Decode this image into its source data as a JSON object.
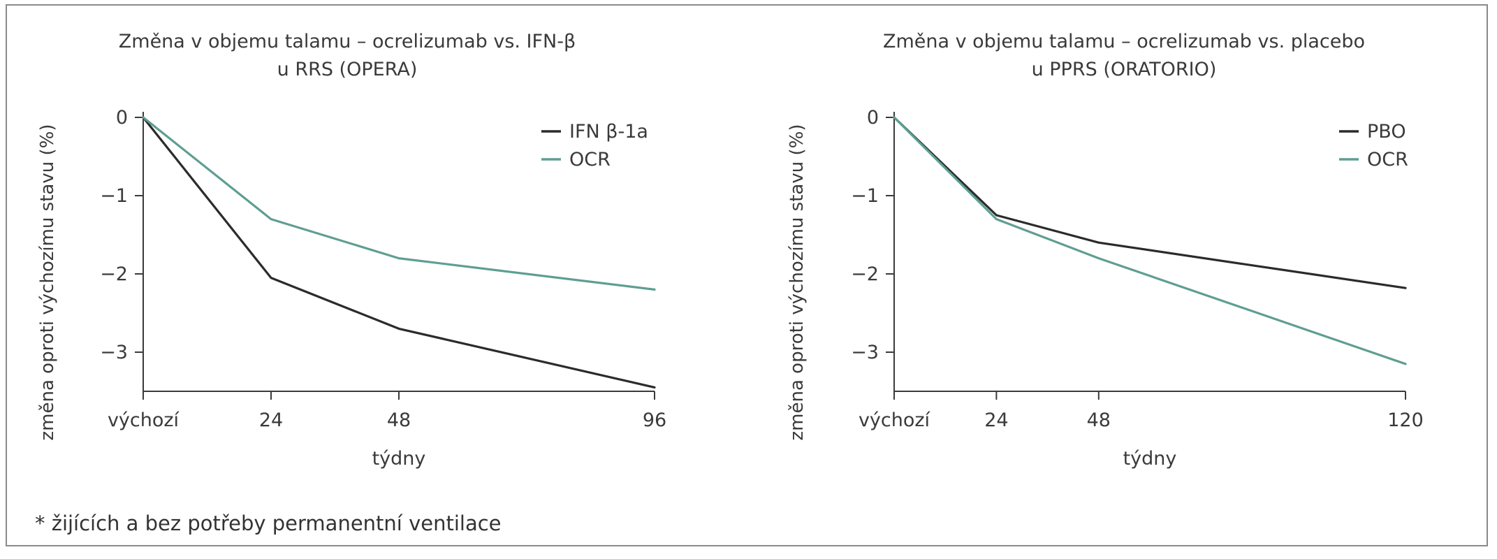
{
  "chart_data": [
    {
      "type": "line",
      "title": [
        "Změna v objemu talamu – ocrelizumab vs. IFN-β",
        "u RRS (OPERA)"
      ],
      "xlabel": "týdny",
      "ylabel": "změna oproti výchozímu stavu (%)",
      "x": [
        0,
        24,
        48,
        96
      ],
      "x_tick_labels": [
        "výchozí",
        "24",
        "48",
        "96"
      ],
      "xlim": [
        0,
        96
      ],
      "ylim": [
        -3.5,
        0
      ],
      "y_ticks": [
        0,
        -1,
        -2,
        -3
      ],
      "y_tick_labels": [
        "0",
        "−1",
        "−2",
        "−3"
      ],
      "grid": false,
      "legend_position": "top-right",
      "series": [
        {
          "name": "IFN β-1a",
          "color": "#2b2b2b",
          "values": [
            0,
            -2.05,
            -2.7,
            -3.45
          ]
        },
        {
          "name": "OCR",
          "color": "#5f9e92",
          "values": [
            0,
            -1.3,
            -1.8,
            -2.2
          ]
        }
      ]
    },
    {
      "type": "line",
      "title": [
        "Změna v objemu talamu – ocrelizumab vs. placebo",
        "u PPRS (ORATORIO)"
      ],
      "xlabel": "týdny",
      "ylabel": "změna oproti výchozímu stavu (%)",
      "x": [
        0,
        24,
        48,
        120
      ],
      "x_tick_labels": [
        "výchozí",
        "24",
        "48",
        "120"
      ],
      "xlim": [
        0,
        120
      ],
      "ylim": [
        -3.5,
        0
      ],
      "y_ticks": [
        0,
        -1,
        -2,
        -3
      ],
      "y_tick_labels": [
        "0",
        "−1",
        "−2",
        "−3"
      ],
      "grid": false,
      "legend_position": "top-right",
      "series": [
        {
          "name": "PBO",
          "color": "#2b2b2b",
          "values": [
            0,
            -1.25,
            -1.6,
            -2.18
          ]
        },
        {
          "name": "OCR",
          "color": "#5f9e92",
          "values": [
            0,
            -1.3,
            -1.8,
            -3.15
          ]
        }
      ]
    }
  ],
  "footnote": "* žijících a bez potřeby permanentní ventilace"
}
